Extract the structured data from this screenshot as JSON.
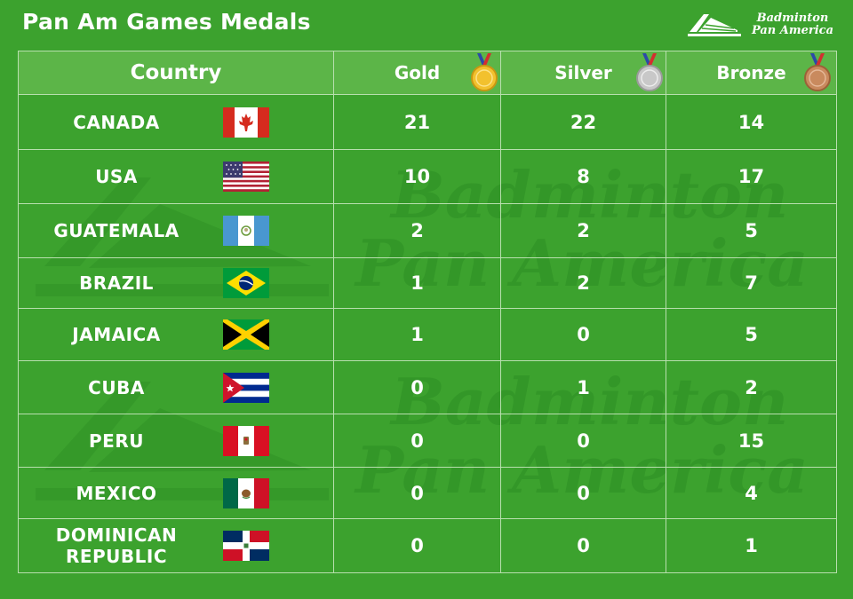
{
  "title": "Pan Am Games Medals",
  "logo": {
    "line1": "Badminton",
    "line2": "Pan America"
  },
  "watermark": {
    "line1": "Badminton",
    "line2": "Pan America"
  },
  "columns": {
    "country": "Country",
    "gold": "Gold",
    "silver": "Silver",
    "bronze": "Bronze"
  },
  "colors": {
    "background": "#3ca22e",
    "header": "#5cb548",
    "gold": "#f2c12e",
    "silver": "#c8c8c8",
    "bronze": "#c98a5e"
  },
  "chart_data": {
    "type": "table",
    "title": "Pan Am Games Medals",
    "columns": [
      "Country",
      "Gold",
      "Silver",
      "Bronze"
    ],
    "rows": [
      {
        "country": "CANADA",
        "flag": "canada-flag",
        "gold": 21,
        "silver": 22,
        "bronze": 14
      },
      {
        "country": "USA",
        "flag": "usa-flag",
        "gold": 10,
        "silver": 8,
        "bronze": 17
      },
      {
        "country": "GUATEMALA",
        "flag": "guatemala-flag",
        "gold": 2,
        "silver": 2,
        "bronze": 5
      },
      {
        "country": "BRAZIL",
        "flag": "brazil-flag",
        "gold": 1,
        "silver": 2,
        "bronze": 7
      },
      {
        "country": "JAMAICA",
        "flag": "jamaica-flag",
        "gold": 1,
        "silver": 0,
        "bronze": 5
      },
      {
        "country": "CUBA",
        "flag": "cuba-flag",
        "gold": 0,
        "silver": 1,
        "bronze": 2
      },
      {
        "country": "PERU",
        "flag": "peru-flag",
        "gold": 0,
        "silver": 0,
        "bronze": 15
      },
      {
        "country": "MEXICO",
        "flag": "mexico-flag",
        "gold": 0,
        "silver": 0,
        "bronze": 4
      },
      {
        "country": "DOMINICAN REPUBLIC",
        "flag": "dominican-republic-flag",
        "gold": 0,
        "silver": 0,
        "bronze": 1
      }
    ]
  }
}
